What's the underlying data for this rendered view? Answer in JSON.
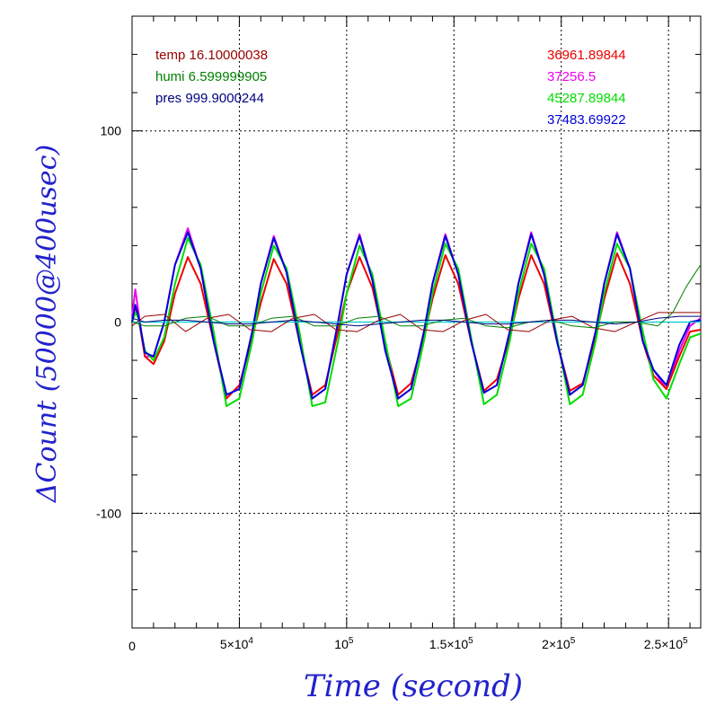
{
  "chart_data": {
    "type": "line",
    "xlabel": "Time (second)",
    "ylabel": "ΔCount (50000@400usec)",
    "xlim": [
      0,
      265000
    ],
    "ylim": [
      -160,
      160
    ],
    "x_ticks": [
      {
        "value": 0,
        "label": "0",
        "sup": ""
      },
      {
        "value": 50000,
        "label": "5×10",
        "sup": "4"
      },
      {
        "value": 100000,
        "label": "10",
        "sup": "5"
      },
      {
        "value": 150000,
        "label": "1.5×10",
        "sup": "5"
      },
      {
        "value": 200000,
        "label": "2×10",
        "sup": "5"
      },
      {
        "value": 250000,
        "label": "2.5×10",
        "sup": "5"
      }
    ],
    "y_ticks": [
      {
        "value": 100,
        "label": "100"
      },
      {
        "value": 0,
        "label": "0"
      },
      {
        "value": -100,
        "label": "-100"
      }
    ],
    "grid": true,
    "annotations_left": [
      {
        "text": "temp 16.10000038",
        "color": "#990000"
      },
      {
        "text": "humi 6.599999905",
        "color": "#008000"
      },
      {
        "text": "pres 999.9000244",
        "color": "#000080"
      }
    ],
    "annotations_right": [
      {
        "text": "36961.89844",
        "color": "#ee0000"
      },
      {
        "text": "37256.5",
        "color": "#ee00ee"
      },
      {
        "text": "45287.89844",
        "color": "#00dd00"
      },
      {
        "text": "37483.69922",
        "color": "#0000dd"
      }
    ],
    "series": [
      {
        "color": "#ee00ee",
        "width": 2,
        "x": [
          0,
          1500,
          3000,
          6000,
          10000,
          15000,
          20000,
          26000,
          32000,
          38000,
          44000,
          50000,
          56000,
          60000,
          66000,
          72000,
          78000,
          84000,
          90000,
          96000,
          100000,
          106000,
          112000,
          118000,
          124000,
          130000,
          136000,
          140000,
          146000,
          152000,
          158000,
          164000,
          170000,
          176000,
          180000,
          186000,
          192000,
          198000,
          204000,
          210000,
          216000,
          220000,
          226000,
          232000,
          238000,
          243000,
          249000,
          255000,
          260000,
          265000
        ],
        "y": [
          3,
          17,
          5,
          -18,
          -18,
          0,
          30,
          49,
          28,
          -10,
          -38,
          -35,
          -5,
          20,
          45,
          26,
          -10,
          -40,
          -35,
          0,
          25,
          46,
          22,
          -15,
          -40,
          -35,
          -5,
          20,
          46,
          25,
          -10,
          -37,
          -33,
          -5,
          20,
          47,
          25,
          -10,
          -38,
          -33,
          -5,
          20,
          47,
          28,
          -10,
          -25,
          -35,
          -15,
          -2,
          2
        ]
      },
      {
        "color": "#ee0000",
        "width": 2,
        "x": [
          0,
          1500,
          3000,
          6000,
          10000,
          15000,
          20000,
          26000,
          32000,
          38000,
          44000,
          50000,
          56000,
          60000,
          66000,
          72000,
          78000,
          84000,
          90000,
          96000,
          100000,
          106000,
          112000,
          118000,
          124000,
          130000,
          136000,
          140000,
          146000,
          152000,
          158000,
          164000,
          170000,
          176000,
          180000,
          186000,
          192000,
          198000,
          204000,
          210000,
          216000,
          220000,
          226000,
          232000,
          238000,
          243000,
          249000,
          255000,
          260000,
          265000
        ],
        "y": [
          0,
          8,
          2,
          -18,
          -22,
          -10,
          15,
          34,
          20,
          -10,
          -40,
          -33,
          -8,
          10,
          33,
          20,
          -10,
          -38,
          -33,
          -5,
          15,
          34,
          18,
          -12,
          -38,
          -32,
          -8,
          12,
          35,
          20,
          -10,
          -36,
          -30,
          -8,
          12,
          35,
          20,
          -10,
          -36,
          -32,
          -8,
          12,
          36,
          20,
          -10,
          -28,
          -35,
          -18,
          -5,
          -4
        ]
      },
      {
        "color": "#00dd00",
        "width": 2,
        "x": [
          0,
          1500,
          3000,
          6000,
          10000,
          15000,
          20000,
          26000,
          32000,
          38000,
          44000,
          50000,
          56000,
          60000,
          66000,
          72000,
          78000,
          84000,
          90000,
          96000,
          100000,
          106000,
          112000,
          118000,
          124000,
          130000,
          136000,
          140000,
          146000,
          152000,
          158000,
          164000,
          170000,
          176000,
          180000,
          186000,
          192000,
          198000,
          204000,
          210000,
          216000,
          220000,
          226000,
          232000,
          238000,
          243000,
          249000,
          255000,
          260000,
          265000
        ],
        "y": [
          0,
          5,
          2,
          -15,
          -20,
          -8,
          20,
          44,
          30,
          -5,
          -44,
          -40,
          -10,
          15,
          40,
          28,
          -5,
          -44,
          -42,
          -10,
          15,
          40,
          25,
          -10,
          -44,
          -40,
          -10,
          15,
          41,
          28,
          -8,
          -43,
          -38,
          -10,
          15,
          41,
          28,
          -8,
          -43,
          -38,
          -10,
          15,
          41,
          28,
          -5,
          -30,
          -40,
          -22,
          -8,
          -6
        ]
      },
      {
        "color": "#0000dd",
        "width": 2,
        "x": [
          0,
          1500,
          3000,
          6000,
          10000,
          15000,
          20000,
          26000,
          32000,
          38000,
          44000,
          50000,
          56000,
          60000,
          66000,
          72000,
          78000,
          84000,
          90000,
          96000,
          100000,
          106000,
          112000,
          118000,
          124000,
          130000,
          136000,
          140000,
          146000,
          152000,
          158000,
          164000,
          170000,
          176000,
          180000,
          186000,
          192000,
          198000,
          204000,
          210000,
          216000,
          220000,
          226000,
          232000,
          238000,
          243000,
          249000,
          255000,
          260000,
          265000
        ],
        "y": [
          0,
          9,
          3,
          -16,
          -18,
          0,
          30,
          47,
          28,
          -10,
          -38,
          -35,
          -5,
          20,
          44,
          26,
          -10,
          -40,
          -35,
          0,
          25,
          45,
          22,
          -15,
          -40,
          -35,
          -5,
          20,
          45,
          25,
          -10,
          -37,
          -33,
          -5,
          20,
          46,
          25,
          -10,
          -38,
          -33,
          -5,
          20,
          46,
          28,
          -10,
          -25,
          -33,
          -12,
          0,
          1
        ]
      },
      {
        "color": "#00cccc",
        "width": 1.2,
        "x": [
          0,
          20000,
          60000,
          100000,
          150000,
          200000,
          240000,
          265000
        ],
        "y": [
          0,
          0,
          0,
          0,
          0,
          0,
          0,
          0
        ]
      },
      {
        "color": "#990000",
        "width": 1,
        "x": [
          0,
          6000,
          15000,
          25000,
          35000,
          45000,
          55000,
          65000,
          75000,
          85000,
          95000,
          105000,
          115000,
          125000,
          135000,
          145000,
          155000,
          165000,
          175000,
          185000,
          195000,
          205000,
          215000,
          225000,
          235000,
          245000,
          255000,
          265000
        ],
        "y": [
          -2,
          3,
          4,
          -5,
          2,
          4,
          -4,
          -5,
          2,
          4,
          -4,
          -5,
          1,
          4,
          -4,
          -5,
          1,
          4,
          -4,
          -5,
          1,
          3,
          -3,
          -5,
          0,
          5,
          5,
          5
        ]
      },
      {
        "color": "#008000",
        "width": 1,
        "x": [
          0,
          6000,
          15000,
          25000,
          35000,
          45000,
          55000,
          65000,
          75000,
          85000,
          95000,
          105000,
          115000,
          125000,
          135000,
          145000,
          155000,
          165000,
          175000,
          185000,
          195000,
          205000,
          215000,
          225000,
          235000,
          245000,
          252000,
          258000,
          262000,
          265000
        ],
        "y": [
          0,
          -2,
          -2,
          2,
          3,
          -2,
          -2,
          2,
          3,
          -2,
          -2,
          2,
          3,
          -2,
          -2,
          1,
          2,
          -2,
          -3,
          0,
          1,
          -2,
          -3,
          0,
          0,
          -2,
          5,
          18,
          25,
          30
        ]
      },
      {
        "color": "#000080",
        "width": 1,
        "x": [
          0,
          6000,
          15000,
          25000,
          35000,
          45000,
          55000,
          65000,
          75000,
          85000,
          95000,
          105000,
          115000,
          125000,
          135000,
          145000,
          155000,
          165000,
          175000,
          185000,
          195000,
          205000,
          215000,
          225000,
          235000,
          245000,
          255000,
          265000
        ],
        "y": [
          2,
          0,
          1,
          1,
          0,
          -1,
          -1,
          0,
          1,
          0,
          -1,
          -2,
          -1,
          0,
          1,
          1,
          0,
          -1,
          -1,
          0,
          1,
          1,
          0,
          -1,
          0,
          2,
          3,
          3
        ]
      }
    ]
  }
}
